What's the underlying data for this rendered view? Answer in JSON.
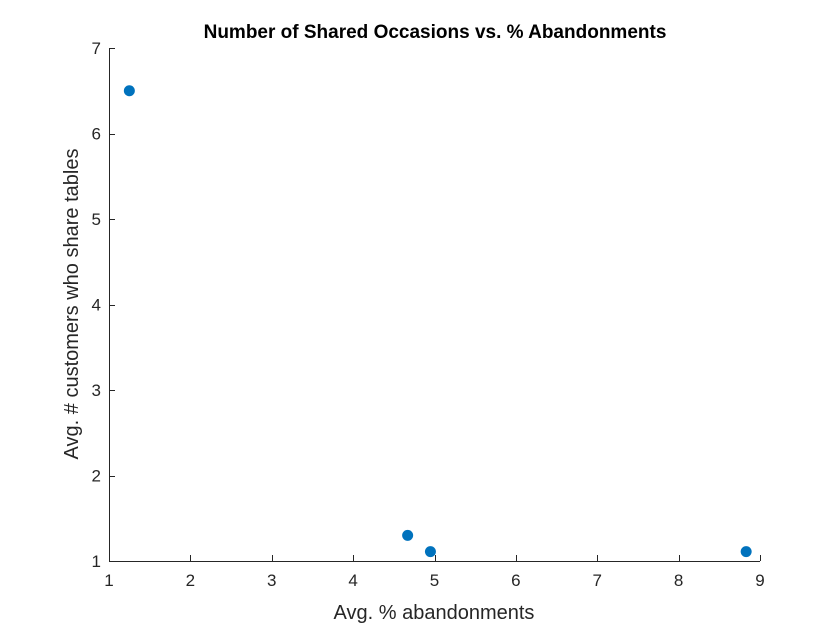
{
  "chart_data": {
    "type": "scatter",
    "title": "Number of Shared Occasions vs. % Abandonments",
    "xlabel": "Avg. % abandonments",
    "ylabel": "Avg. # customers who share tables",
    "xlim": [
      1,
      9
    ],
    "ylim": [
      1,
      7
    ],
    "xticks": [
      "1",
      "2",
      "3",
      "4",
      "5",
      "6",
      "7",
      "8",
      "9"
    ],
    "yticks": [
      "1",
      "2",
      "3",
      "4",
      "5",
      "6",
      "7"
    ],
    "grid": false,
    "series": [
      {
        "color": "#0072BD",
        "points": [
          {
            "x": 1.25,
            "y": 6.5
          },
          {
            "x": 4.67,
            "y": 1.3
          },
          {
            "x": 4.95,
            "y": 1.11
          },
          {
            "x": 8.83,
            "y": 1.11
          }
        ]
      }
    ]
  }
}
